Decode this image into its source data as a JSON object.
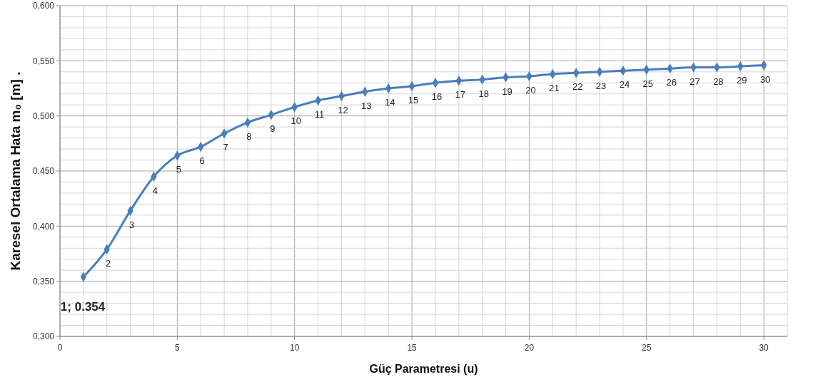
{
  "chart_data": {
    "type": "line",
    "xlabel": "Güç Parametresi (u)",
    "ylabel": "Karesel Ortalama Hata  m₀ [m] .",
    "x": [
      1,
      2,
      3,
      4,
      5,
      6,
      7,
      8,
      9,
      10,
      11,
      12,
      13,
      14,
      15,
      16,
      17,
      18,
      19,
      20,
      21,
      22,
      23,
      24,
      25,
      26,
      27,
      28,
      29,
      30
    ],
    "series": [
      {
        "color": "#4a7ebb",
        "values": [
          0.354,
          0.379,
          0.414,
          0.445,
          0.464,
          0.472,
          0.484,
          0.494,
          0.501,
          0.508,
          0.514,
          0.518,
          0.522,
          0.525,
          0.527,
          0.53,
          0.532,
          0.533,
          0.535,
          0.536,
          0.538,
          0.539,
          0.54,
          0.541,
          0.542,
          0.543,
          0.544,
          0.544,
          0.545,
          0.546
        ],
        "marker": "diamond"
      }
    ],
    "annotations": [
      {
        "text": "1; 0.354",
        "x": 1,
        "y": 0.354
      },
      {
        "text": "2",
        "x": 2,
        "y": 0.379
      },
      {
        "text": "3",
        "x": 3,
        "y": 0.414
      },
      {
        "text": "4",
        "x": 4,
        "y": 0.445
      },
      {
        "text": "5",
        "x": 5,
        "y": 0.464
      },
      {
        "text": "6",
        "x": 6,
        "y": 0.472
      },
      {
        "text": "7",
        "x": 7,
        "y": 0.484
      },
      {
        "text": "8",
        "x": 8,
        "y": 0.494
      },
      {
        "text": "9",
        "x": 9,
        "y": 0.501
      },
      {
        "text": "10",
        "x": 10,
        "y": 0.508
      },
      {
        "text": "11",
        "x": 11,
        "y": 0.514
      },
      {
        "text": "12",
        "x": 12,
        "y": 0.518
      },
      {
        "text": "13",
        "x": 13,
        "y": 0.522
      },
      {
        "text": "14",
        "x": 14,
        "y": 0.525
      },
      {
        "text": "15",
        "x": 15,
        "y": 0.527
      },
      {
        "text": "16",
        "x": 16,
        "y": 0.53
      },
      {
        "text": "17",
        "x": 17,
        "y": 0.532
      },
      {
        "text": "18",
        "x": 18,
        "y": 0.533
      },
      {
        "text": "19",
        "x": 19,
        "y": 0.535
      },
      {
        "text": "20",
        "x": 20,
        "y": 0.536
      },
      {
        "text": "21",
        "x": 21,
        "y": 0.538
      },
      {
        "text": "22",
        "x": 22,
        "y": 0.539
      },
      {
        "text": "23",
        "x": 23,
        "y": 0.54
      },
      {
        "text": "24",
        "x": 24,
        "y": 0.541
      },
      {
        "text": "25",
        "x": 25,
        "y": 0.542
      },
      {
        "text": "26",
        "x": 26,
        "y": 0.543
      },
      {
        "text": "27",
        "x": 27,
        "y": 0.544
      },
      {
        "text": "28",
        "x": 28,
        "y": 0.544
      },
      {
        "text": "29",
        "x": 29,
        "y": 0.545
      },
      {
        "text": "30",
        "x": 30,
        "y": 0.546
      }
    ],
    "xlim": [
      0,
      31
    ],
    "xticks": [
      0,
      {
        "value": 1,
        "label": null
      },
      {
        "value": 2,
        "label": null
      },
      {
        "value": 3,
        "label": null
      },
      {
        "value": 4,
        "label": null
      },
      5,
      {
        "value": 6,
        "label": null
      },
      {
        "value": 7,
        "label": null
      },
      {
        "value": 8,
        "label": null
      },
      {
        "value": 9,
        "label": null
      },
      10,
      {
        "value": 11,
        "label": null
      },
      {
        "value": 12,
        "label": null
      },
      {
        "value": 13,
        "label": null
      },
      {
        "value": 14,
        "label": null
      },
      15,
      {
        "value": 16,
        "label": null
      },
      {
        "value": 17,
        "label": null
      },
      {
        "value": 18,
        "label": null
      },
      {
        "value": 19,
        "label": null
      },
      20,
      {
        "value": 21,
        "label": null
      },
      {
        "value": 22,
        "label": null
      },
      {
        "value": 23,
        "label": null
      },
      {
        "value": 24,
        "label": null
      },
      25,
      {
        "value": 26,
        "label": null
      },
      {
        "value": 27,
        "label": null
      },
      {
        "value": 28,
        "label": null
      },
      {
        "value": 29,
        "label": null
      },
      30,
      {
        "value": 31,
        "label": null
      }
    ],
    "ylim": [
      0.3,
      0.6
    ],
    "yticks": [
      {
        "value": 0.3,
        "label": "0,300"
      },
      {
        "value": 0.31,
        "label": null
      },
      {
        "value": 0.32,
        "label": null
      },
      {
        "value": 0.33,
        "label": null
      },
      {
        "value": 0.34,
        "label": null
      },
      {
        "value": 0.35,
        "label": "0,350"
      },
      {
        "value": 0.36,
        "label": null
      },
      {
        "value": 0.37,
        "label": null
      },
      {
        "value": 0.38,
        "label": null
      },
      {
        "value": 0.39,
        "label": null
      },
      {
        "value": 0.4,
        "label": "0,400"
      },
      {
        "value": 0.41,
        "label": null
      },
      {
        "value": 0.42,
        "label": null
      },
      {
        "value": 0.43,
        "label": null
      },
      {
        "value": 0.44,
        "label": null
      },
      {
        "value": 0.45,
        "label": "0,450"
      },
      {
        "value": 0.46,
        "label": null
      },
      {
        "value": 0.47,
        "label": null
      },
      {
        "value": 0.48,
        "label": null
      },
      {
        "value": 0.49,
        "label": null
      },
      {
        "value": 0.5,
        "label": "0,500"
      },
      {
        "value": 0.51,
        "label": null
      },
      {
        "value": 0.52,
        "label": null
      },
      {
        "value": 0.53,
        "label": null
      },
      {
        "value": 0.54,
        "label": null
      },
      {
        "value": 0.55,
        "label": "0,550"
      },
      {
        "value": 0.56,
        "label": null
      },
      {
        "value": 0.57,
        "label": null
      },
      {
        "value": 0.58,
        "label": null
      },
      {
        "value": 0.59,
        "label": null
      },
      {
        "value": 0.6,
        "label": "0,600"
      }
    ],
    "grid": true,
    "line_style": "solid"
  }
}
